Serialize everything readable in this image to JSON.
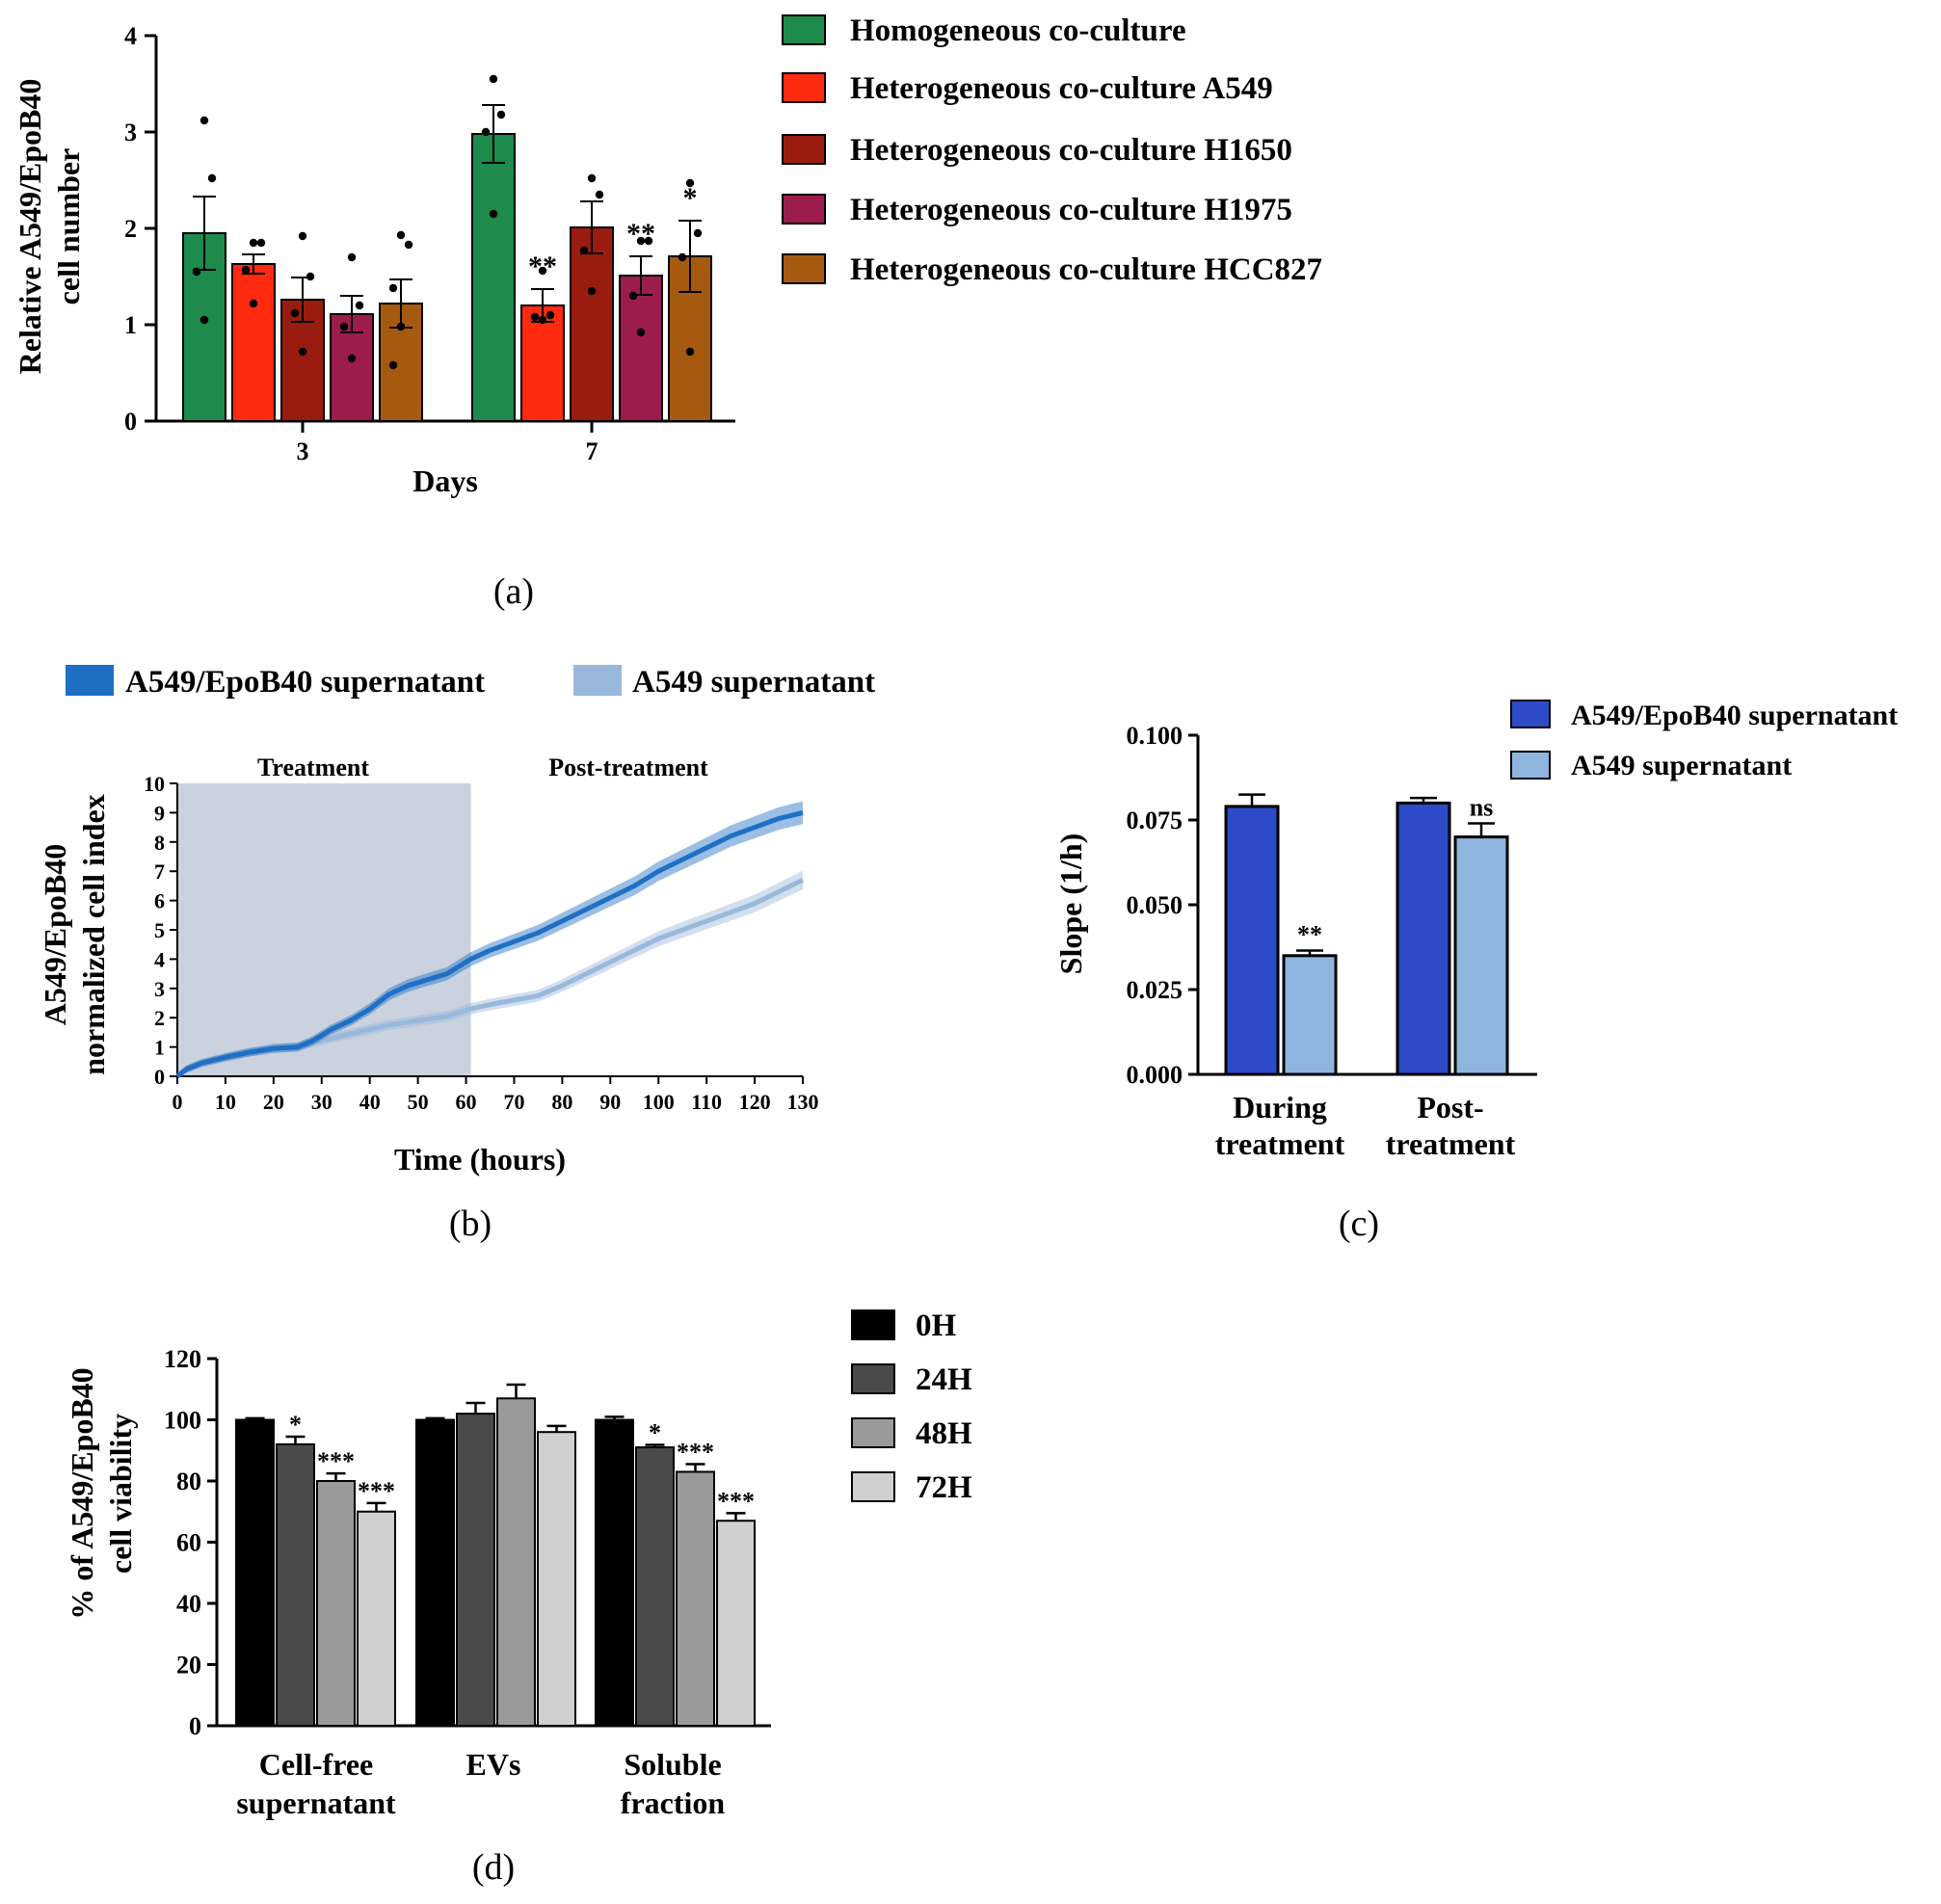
{
  "colors": {
    "homogeneous": "#1e8a4c",
    "het_a549": "#ff2a10",
    "het_h1650": "#9a1c10",
    "het_h1975": "#9c1d4d",
    "het_hcc827": "#a65a10",
    "epob40_sup": "#1f6fc4",
    "a549_sup": "#9ab8dc",
    "shade": "#c9d2de",
    "c_dark": "#2d4bc9",
    "c_light": "#8fb5df",
    "h0": "#000000",
    "h24": "#4a4a4a",
    "h48": "#9a9a9a",
    "h72": "#d0d0d0"
  },
  "panels": {
    "a": {
      "caption": "(a)",
      "ylabel_line1": "Relative A549/EpoB40",
      "ylabel_line2": "cell number",
      "xlabel": "Days",
      "yticks": [
        "0",
        "1",
        "2",
        "3",
        "4"
      ],
      "legend": [
        "Homogeneous co-culture",
        "Heterogeneous co-culture A549",
        "Heterogeneous co-culture H1650",
        "Heterogeneous co-culture H1975",
        "Heterogeneous co-culture HCC827"
      ]
    },
    "b": {
      "caption": "(b)",
      "ylabel_line1": "A549/EpoB40",
      "ylabel_line2": "normalized cell index",
      "xlabel": "Time (hours)",
      "treatment_label": "Treatment",
      "post_label": "Post-treatment",
      "legend": [
        "A549/EpoB40 supernatant",
        "A549 supernatant"
      ]
    },
    "c": {
      "caption": "(c)",
      "ylabel": "Slope (1/h)",
      "yticks": [
        "0.000",
        "0.025",
        "0.050",
        "0.075",
        "0.100"
      ],
      "cat1_line1": "During",
      "cat1_line2": "treatment",
      "cat2_line1": "Post-",
      "cat2_line2": "treatment",
      "legend": [
        "A549/EpoB40 supernatant",
        "A549 supernatant"
      ]
    },
    "d": {
      "caption": "(d)",
      "ylabel_line1": "% of A549/EpoB40",
      "ylabel_line2": "cell viability",
      "yticks": [
        "0",
        "20",
        "40",
        "60",
        "80",
        "100",
        "120"
      ],
      "cat1_line1": "Cell-free",
      "cat1_line2": "supernatant",
      "cat2": "EVs",
      "cat3_line1": "Soluble",
      "cat3_line2": "fraction",
      "legend": [
        "0H",
        "24H",
        "48H",
        "72H"
      ]
    }
  },
  "chart_data": [
    {
      "panel": "a",
      "type": "bar",
      "categories": [
        "3",
        "7"
      ],
      "xlabel": "Days",
      "ylabel": "Relative A549/EpoB40 cell number",
      "ylim": [
        0,
        4
      ],
      "series": [
        {
          "name": "Homogeneous co-culture",
          "values": [
            1.95,
            2.98
          ],
          "errors": [
            0.38,
            0.3
          ],
          "points": [
            [
              3.12,
              2.52,
              1.55,
              1.05
            ],
            [
              3.55,
              3.18,
              3.0,
              2.15
            ]
          ],
          "annotations": [
            "",
            ""
          ]
        },
        {
          "name": "Heterogeneous co-culture A549",
          "values": [
            1.63,
            1.2
          ],
          "errors": [
            0.1,
            0.17
          ],
          "points": [
            [
              1.85,
              1.85,
              1.57,
              1.22
            ],
            [
              1.56,
              1.1,
              1.08,
              1.05
            ]
          ],
          "annotations": [
            "",
            "**"
          ]
        },
        {
          "name": "Heterogeneous co-culture H1650",
          "values": [
            1.26,
            2.01
          ],
          "errors": [
            0.23,
            0.27
          ],
          "points": [
            [
              1.92,
              1.5,
              1.12,
              0.72
            ],
            [
              2.52,
              2.35,
              1.77,
              1.35
            ]
          ],
          "annotations": [
            "",
            ""
          ]
        },
        {
          "name": "Heterogeneous co-culture H1975",
          "values": [
            1.11,
            1.51
          ],
          "errors": [
            0.19,
            0.2
          ],
          "points": [
            [
              1.7,
              1.2,
              0.98,
              0.65
            ],
            [
              1.87,
              1.87,
              1.3,
              0.92
            ]
          ],
          "annotations": [
            "",
            "**"
          ]
        },
        {
          "name": "Heterogeneous co-culture HCC827",
          "values": [
            1.22,
            1.71
          ],
          "errors": [
            0.25,
            0.37
          ],
          "points": [
            [
              1.93,
              1.83,
              1.38,
              0.98,
              0.58
            ],
            [
              2.47,
              1.95,
              1.7,
              0.72
            ]
          ],
          "annotations": [
            "",
            "*"
          ]
        }
      ]
    },
    {
      "panel": "b",
      "type": "line",
      "xlabel": "Time (hours)",
      "ylabel": "A549/EpoB40 normalized cell index",
      "xlim": [
        0,
        130
      ],
      "ylim": [
        0,
        10
      ],
      "xticks": [
        0,
        10,
        20,
        30,
        40,
        50,
        60,
        70,
        80,
        90,
        100,
        110,
        120,
        130
      ],
      "yticks": [
        0,
        1,
        2,
        3,
        4,
        5,
        6,
        7,
        8,
        9,
        10
      ],
      "treatment_end": 61,
      "series": [
        {
          "name": "A549/EpoB40 supernatant",
          "x": [
            0,
            2,
            5,
            10,
            15,
            20,
            25,
            28,
            32,
            36,
            40,
            44,
            48,
            52,
            56,
            61,
            65,
            70,
            75,
            80,
            85,
            90,
            95,
            100,
            105,
            110,
            115,
            120,
            125,
            130
          ],
          "y": [
            0,
            0.25,
            0.45,
            0.65,
            0.82,
            0.95,
            1.0,
            1.2,
            1.6,
            1.9,
            2.3,
            2.8,
            3.1,
            3.3,
            3.5,
            4.0,
            4.3,
            4.6,
            4.9,
            5.3,
            5.7,
            6.1,
            6.5,
            7.0,
            7.4,
            7.8,
            8.2,
            8.5,
            8.8,
            9.0
          ]
        },
        {
          "name": "A549 supernatant",
          "x": [
            0,
            2,
            5,
            10,
            15,
            20,
            25,
            28,
            32,
            36,
            40,
            44,
            48,
            52,
            56,
            61,
            65,
            70,
            75,
            80,
            85,
            90,
            95,
            100,
            105,
            110,
            115,
            120,
            125,
            130
          ],
          "y": [
            0,
            0.25,
            0.45,
            0.65,
            0.82,
            0.95,
            1.0,
            1.15,
            1.3,
            1.45,
            1.6,
            1.75,
            1.85,
            1.95,
            2.05,
            2.3,
            2.45,
            2.6,
            2.75,
            3.1,
            3.5,
            3.9,
            4.3,
            4.7,
            5.0,
            5.3,
            5.6,
            5.9,
            6.3,
            6.7
          ]
        }
      ]
    },
    {
      "panel": "c",
      "type": "bar",
      "categories": [
        "During treatment",
        "Post-treatment"
      ],
      "ylabel": "Slope (1/h)",
      "ylim": [
        0,
        0.1
      ],
      "series": [
        {
          "name": "A549/EpoB40 supernatant",
          "values": [
            0.079,
            0.08
          ],
          "errors": [
            0.0035,
            0.0015
          ],
          "annotations": [
            "",
            ""
          ]
        },
        {
          "name": "A549 supernatant",
          "values": [
            0.035,
            0.07
          ],
          "errors": [
            0.0015,
            0.004
          ],
          "annotations": [
            "**",
            "ns"
          ]
        }
      ]
    },
    {
      "panel": "d",
      "type": "bar",
      "categories": [
        "Cell-free supernatant",
        "EVs",
        "Soluble fraction"
      ],
      "ylabel": "% of A549/EpoB40 cell viability",
      "ylim": [
        0,
        120
      ],
      "series": [
        {
          "name": "0H",
          "values": [
            100,
            100,
            100
          ],
          "errors": [
            0.5,
            0.5,
            1
          ],
          "annotations": [
            "",
            "",
            ""
          ]
        },
        {
          "name": "24H",
          "values": [
            92,
            102,
            91
          ],
          "errors": [
            2.5,
            3.5,
            0.8
          ],
          "annotations": [
            "*",
            "",
            "*"
          ]
        },
        {
          "name": "48H",
          "values": [
            80,
            107,
            83
          ],
          "errors": [
            2.5,
            4.5,
            2.5
          ],
          "annotations": [
            "***",
            "",
            "***"
          ]
        },
        {
          "name": "72H",
          "values": [
            70,
            96,
            67
          ],
          "errors": [
            2.8,
            2,
            2.5
          ],
          "annotations": [
            "***",
            "",
            "***"
          ]
        }
      ]
    }
  ]
}
